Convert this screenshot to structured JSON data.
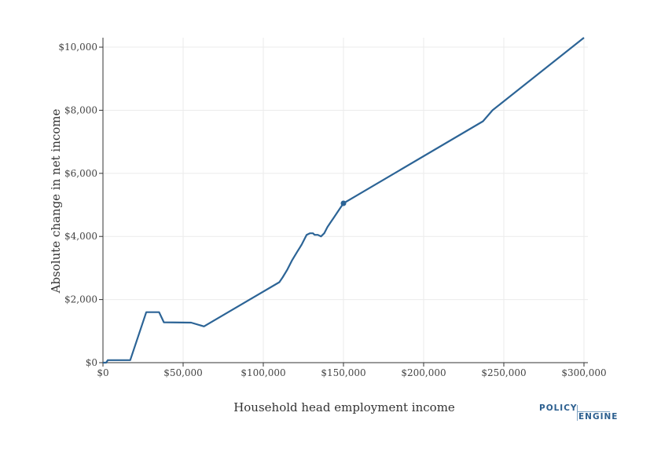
{
  "chart_data": {
    "type": "line",
    "xlabel": "Household head employment income",
    "ylabel": "Absolute change in net income",
    "xlim": [
      0,
      300000
    ],
    "ylim": [
      0,
      10300
    ],
    "x_ticks": [
      0,
      50000,
      100000,
      150000,
      200000,
      250000,
      300000
    ],
    "x_tick_labels": [
      "$0",
      "$50,000",
      "$100,000",
      "$150,000",
      "$200,000",
      "$250,000",
      "$300,000"
    ],
    "y_ticks": [
      0,
      2000,
      4000,
      6000,
      8000,
      10000
    ],
    "y_tick_labels": [
      "$0",
      "$2,000",
      "$4,000",
      "$6,000",
      "$8,000",
      "$10,000"
    ],
    "grid": true,
    "color": "#2c6496",
    "series": [
      {
        "x": [
          0,
          2000,
          3000,
          17000,
          27000,
          35000,
          38000,
          55000,
          63000,
          110000,
          112000,
          115000,
          118000,
          121000,
          124000,
          127000,
          129000,
          131000,
          132000,
          134000,
          136000,
          138000,
          140000,
          142000,
          144000,
          146000,
          148000,
          150000,
          237000,
          243000,
          300000
        ],
        "y": [
          0,
          0,
          80,
          80,
          1600,
          1600,
          1280,
          1270,
          1150,
          2550,
          2700,
          2950,
          3250,
          3500,
          3750,
          4050,
          4100,
          4100,
          4050,
          4050,
          4000,
          4100,
          4300,
          4450,
          4600,
          4750,
          4900,
          5050,
          7650,
          8000,
          10300
        ]
      }
    ],
    "highlight_point": {
      "x": 150000,
      "y": 5050
    }
  },
  "logo": {
    "line1": "POLICY",
    "line2": "ENGINE"
  }
}
